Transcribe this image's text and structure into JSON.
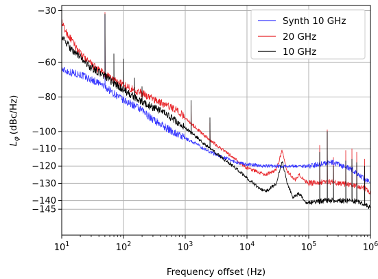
{
  "chart_data": {
    "type": "line",
    "xlabel": "Frequency offset (Hz)",
    "ylabel_main": "L",
    "ylabel_sub": "φ",
    "ylabel_unit": "(dBc/Hz)",
    "xscale": "log",
    "xlim": [
      10,
      1000000
    ],
    "ylim": [
      -160,
      -27
    ],
    "x_ticks": [
      {
        "base": "10",
        "exp": "1",
        "value": 10
      },
      {
        "base": "10",
        "exp": "2",
        "value": 100
      },
      {
        "base": "10",
        "exp": "3",
        "value": 1000
      },
      {
        "base": "10",
        "exp": "4",
        "value": 10000
      },
      {
        "base": "10",
        "exp": "5",
        "value": 100000
      },
      {
        "base": "10",
        "exp": "6",
        "value": 1000000
      }
    ],
    "y_ticks": [
      {
        "label": "−30",
        "value": -30
      },
      {
        "label": "−60",
        "value": -60
      },
      {
        "label": "−80",
        "value": -80
      },
      {
        "label": "−100",
        "value": -100
      },
      {
        "label": "−110",
        "value": -110
      },
      {
        "label": "−120",
        "value": -120
      },
      {
        "label": "−130",
        "value": -130
      },
      {
        "label": "−140",
        "value": -140
      },
      {
        "label": "−145",
        "value": -145
      }
    ],
    "grid": true,
    "legend_position": "top-right",
    "series": [
      {
        "name": "Synth 10 GHz",
        "color": "#3a3aff",
        "points": [
          [
            10,
            -64
          ],
          [
            12,
            -65
          ],
          [
            15,
            -66
          ],
          [
            20,
            -67
          ],
          [
            30,
            -70
          ],
          [
            40,
            -72
          ],
          [
            50,
            -74
          ],
          [
            70,
            -78
          ],
          [
            100,
            -82
          ],
          [
            150,
            -85
          ],
          [
            200,
            -88
          ],
          [
            300,
            -93
          ],
          [
            500,
            -98
          ],
          [
            700,
            -101
          ],
          [
            1000,
            -104
          ],
          [
            1500,
            -107
          ],
          [
            2000,
            -110
          ],
          [
            3000,
            -113
          ],
          [
            5000,
            -116
          ],
          [
            7000,
            -118
          ],
          [
            10000,
            -119
          ],
          [
            20000,
            -120
          ],
          [
            50000,
            -120
          ],
          [
            100000,
            -120
          ],
          [
            150000,
            -119
          ],
          [
            200000,
            -118
          ],
          [
            250000,
            -118
          ],
          [
            300000,
            -119
          ],
          [
            500000,
            -122
          ],
          [
            700000,
            -126
          ],
          [
            1000000,
            -130
          ]
        ],
        "spikes": [
          [
            50,
            -33
          ]
        ]
      },
      {
        "name": "20 GHz",
        "color": "#e8262b",
        "points": [
          [
            10,
            -37
          ],
          [
            12,
            -43
          ],
          [
            15,
            -48
          ],
          [
            20,
            -55
          ],
          [
            30,
            -61
          ],
          [
            50,
            -67
          ],
          [
            70,
            -70
          ],
          [
            100,
            -73
          ],
          [
            150,
            -76
          ],
          [
            200,
            -78
          ],
          [
            300,
            -81
          ],
          [
            500,
            -85
          ],
          [
            700,
            -87
          ],
          [
            1000,
            -92
          ],
          [
            1500,
            -98
          ],
          [
            2000,
            -102
          ],
          [
            3000,
            -107
          ],
          [
            5000,
            -113
          ],
          [
            7000,
            -117
          ],
          [
            10000,
            -121
          ],
          [
            20000,
            -125
          ],
          [
            30000,
            -122
          ],
          [
            37000,
            -111
          ],
          [
            45000,
            -123
          ],
          [
            60000,
            -128
          ],
          [
            70000,
            -125
          ],
          [
            90000,
            -129
          ],
          [
            100000,
            -130
          ],
          [
            200000,
            -129
          ],
          [
            500000,
            -131
          ],
          [
            700000,
            -132
          ],
          [
            1000000,
            -135
          ]
        ],
        "spikes": [
          [
            50,
            -31
          ],
          [
            100,
            -70
          ],
          [
            150,
            -77
          ],
          [
            1250,
            -85
          ],
          [
            2500,
            -95
          ],
          [
            150000,
            -108
          ],
          [
            200000,
            -99
          ],
          [
            250000,
            -115
          ],
          [
            400000,
            -111
          ],
          [
            500000,
            -110
          ],
          [
            600000,
            -112
          ],
          [
            800000,
            -116
          ]
        ]
      },
      {
        "name": "10 GHz",
        "color": "#000000",
        "points": [
          [
            10,
            -45
          ],
          [
            12,
            -49
          ],
          [
            15,
            -53
          ],
          [
            20,
            -57
          ],
          [
            30,
            -63
          ],
          [
            50,
            -68
          ],
          [
            70,
            -72
          ],
          [
            100,
            -76
          ],
          [
            150,
            -80
          ],
          [
            200,
            -83
          ],
          [
            300,
            -86
          ],
          [
            500,
            -90
          ],
          [
            700,
            -94
          ],
          [
            1000,
            -98
          ],
          [
            1500,
            -103
          ],
          [
            2000,
            -107
          ],
          [
            3000,
            -112
          ],
          [
            5000,
            -118
          ],
          [
            7000,
            -122
          ],
          [
            10000,
            -127
          ],
          [
            15000,
            -132
          ],
          [
            20000,
            -135
          ],
          [
            30000,
            -130
          ],
          [
            37000,
            -117
          ],
          [
            45000,
            -130
          ],
          [
            55000,
            -138
          ],
          [
            70000,
            -136
          ],
          [
            90000,
            -141
          ],
          [
            100000,
            -141
          ],
          [
            200000,
            -140
          ],
          [
            500000,
            -140
          ],
          [
            700000,
            -141
          ],
          [
            1000000,
            -144
          ]
        ],
        "spikes": [
          [
            50,
            -32
          ],
          [
            70,
            -55
          ],
          [
            100,
            -58
          ],
          [
            150,
            -69
          ],
          [
            200,
            -74
          ],
          [
            1250,
            -82
          ],
          [
            2500,
            -92
          ],
          [
            8000,
            -124
          ],
          [
            150000,
            -112
          ],
          [
            200000,
            -100
          ],
          [
            250000,
            -120
          ],
          [
            400000,
            -117
          ],
          [
            500000,
            -116
          ],
          [
            600000,
            -118
          ],
          [
            800000,
            -120
          ]
        ]
      }
    ]
  }
}
